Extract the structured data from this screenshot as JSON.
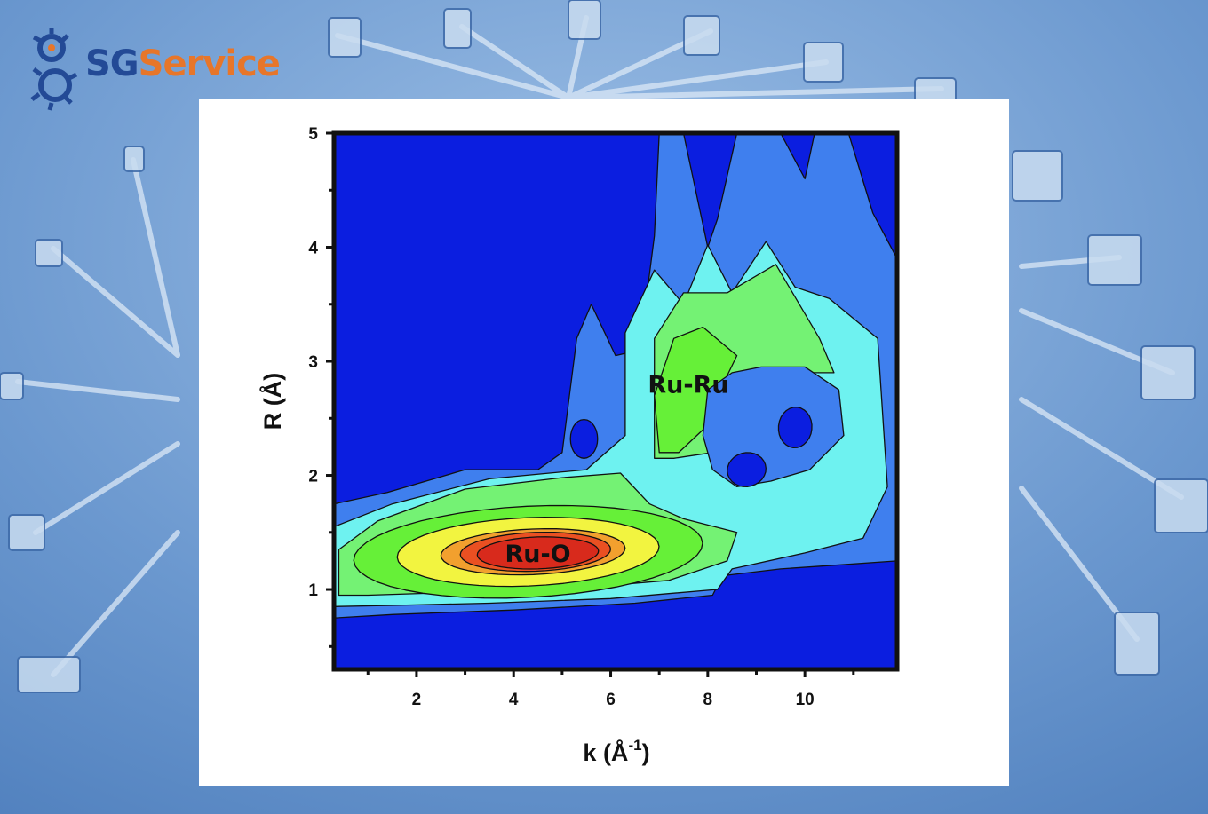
{
  "brand": {
    "logo_part1": "SG",
    "logo_part2": "Service",
    "logo_icon": "gear-icon",
    "colors": {
      "logo_dark": "#234a96",
      "logo_orange": "#e7762a",
      "background": "#5d8dc6"
    }
  },
  "chart_data": {
    "type": "contour",
    "title": "",
    "xlabel": "k (Å",
    "xlabel_sup": "-1",
    "xlabel_close": ")",
    "ylabel": "R (Å)",
    "xlim": [
      0.3,
      11.9
    ],
    "ylim": [
      0.3,
      5.0
    ],
    "x_ticks": [
      2,
      4,
      6,
      8,
      10
    ],
    "x_tick_labels": [
      "2",
      "4",
      "6",
      "8",
      "10"
    ],
    "y_ticks": [
      1,
      2,
      3,
      4,
      5
    ],
    "y_tick_labels": [
      "1",
      "2",
      "3",
      "4",
      "5"
    ],
    "grid": false,
    "levels": [
      0,
      1,
      2,
      3,
      4,
      5,
      6,
      7,
      8
    ],
    "level_colors": [
      "#0b1ee0",
      "#3f7fee",
      "#6ef2f0",
      "#74f274",
      "#66f038",
      "#f2f440",
      "#f2a02e",
      "#ea5022",
      "#d82a1c"
    ],
    "peaks": [
      {
        "label": "Ru-O",
        "k": 4.5,
        "R": 1.32,
        "level": 8
      },
      {
        "label": "Ru-Ru",
        "k": 7.6,
        "R": 2.8,
        "level": 4
      }
    ],
    "holes": [
      {
        "k": 5.4,
        "R": 2.32,
        "level": 1
      },
      {
        "k": 8.8,
        "R": 2.05,
        "level": 1
      },
      {
        "k": 9.8,
        "R": 2.42,
        "level": 1
      }
    ]
  }
}
